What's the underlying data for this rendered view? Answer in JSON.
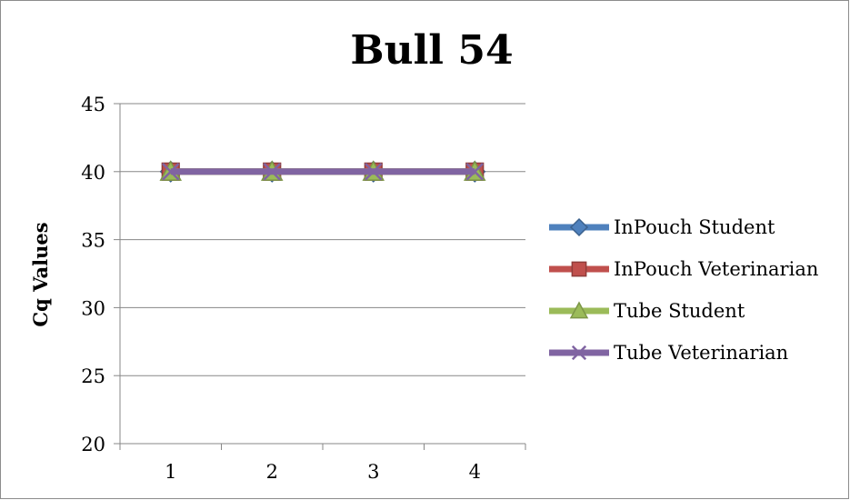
{
  "chart_data": {
    "type": "line",
    "title": "Bull 54",
    "xlabel": "",
    "ylabel": "Cq Values",
    "categories": [
      "1",
      "2",
      "3",
      "4"
    ],
    "ylim": [
      20,
      45
    ],
    "yticks": [
      20,
      25,
      30,
      35,
      40,
      45
    ],
    "grid": "horizontal",
    "legend_position": "right",
    "series": [
      {
        "name": "InPouch Student",
        "values": [
          40,
          40,
          40,
          40
        ],
        "color": "#4F81BD",
        "marker": "diamond"
      },
      {
        "name": "InPouch Veterinarian",
        "values": [
          40,
          40,
          40,
          40
        ],
        "color": "#C0504D",
        "marker": "square"
      },
      {
        "name": "Tube Student",
        "values": [
          40,
          40,
          40,
          40
        ],
        "color": "#9BBB59",
        "marker": "triangle"
      },
      {
        "name": "Tube Veterinarian",
        "values": [
          40,
          40,
          40,
          40
        ],
        "color": "#8064A2",
        "marker": "x"
      }
    ]
  }
}
